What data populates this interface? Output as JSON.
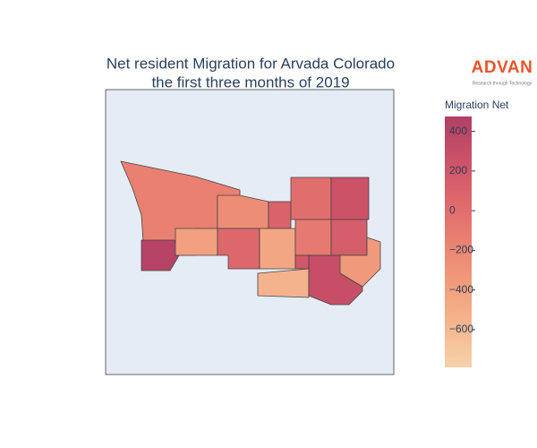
{
  "chart_data": {
    "type": "choropleth",
    "title_lines": [
      "Net resident Migration for Arvada Colorado",
      "the first three months of 2019"
    ],
    "logo": {
      "name": "ADVAN",
      "tagline": "Research through Technology",
      "color": "#e8552d"
    },
    "colorbar_title": "Migration Net",
    "values": [
      -150,
      430,
      -250,
      100,
      0,
      250,
      -400,
      50,
      -450,
      -100,
      150,
      -350,
      -550,
      300,
      200
    ],
    "clim": [
      -790,
      475
    ],
    "cticks": [
      400,
      200,
      0,
      {
        "value": -200,
        "label": "−200"
      },
      {
        "value": -400,
        "label": "−400"
      },
      {
        "value": -600,
        "label": "−600"
      }
    ],
    "colorscale": [
      "#f6d2a9",
      "#f5b78e",
      "#f19c7c",
      "#ea8171",
      "#dd686c",
      "#ca5268",
      "#b13f64"
    ],
    "map_background": "#e5ecf6"
  }
}
